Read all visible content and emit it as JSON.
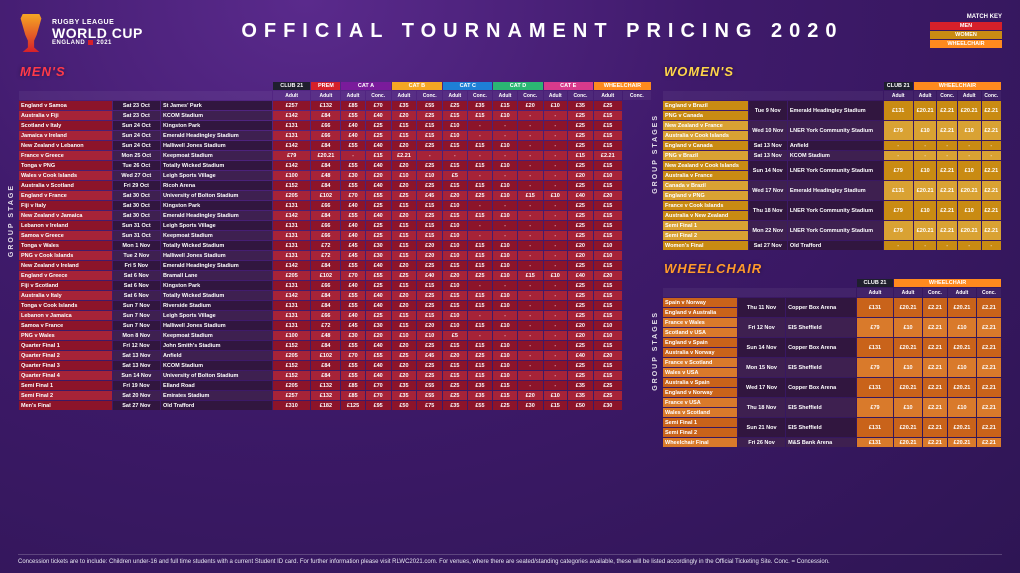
{
  "header": {
    "logo": {
      "line1": "RUGBY LEAGUE",
      "line2": "WORLD CUP",
      "line3a": "ENGLAND",
      "line3b": "2021"
    },
    "title": "OFFICIAL TOURNAMENT PRICING 2020",
    "matchKey": {
      "title": "MATCH KEY",
      "items": [
        {
          "label": "MEN",
          "bg": "#d6202a"
        },
        {
          "label": "WOMEN",
          "bg": "#c98b13"
        },
        {
          "label": "WHEELCHAIR",
          "bg": "#ff8a1e"
        }
      ]
    }
  },
  "footer": "Concession tickets are to include: Children under-16 and full time students with a current Student ID card. For further information please visit RLWC2021.com. For venues, where there are seated/standing categories available, these will be listed accordingly in the Official Ticketing Site. Conc. = Concession.",
  "mens": {
    "title": "MEN'S",
    "groupLabel": "GROUP STAGE",
    "catHeaders": [
      {
        "label": "CLUB 21",
        "cls": "c-club21",
        "cols": 1
      },
      {
        "label": "PREM",
        "cls": "c-prem",
        "cols": 1
      },
      {
        "label": "CAT A",
        "cls": "c-catA",
        "cols": 2
      },
      {
        "label": "CAT B",
        "cls": "c-catB",
        "cols": 2
      },
      {
        "label": "CAT C",
        "cls": "c-catC",
        "cols": 2
      },
      {
        "label": "CAT D",
        "cls": "c-catD",
        "cols": 2
      },
      {
        "label": "CAT E",
        "cls": "c-catE",
        "cols": 2
      },
      {
        "label": "WHEELCHAIR",
        "cls": "c-wheel",
        "cols": 2
      }
    ],
    "subHeaders": [
      "Adult",
      "Adult",
      "Adult",
      "Conc.",
      "Adult",
      "Conc.",
      "Adult",
      "Conc.",
      "Adult",
      "Conc.",
      "Adult",
      "Conc.",
      "Adult",
      "Conc."
    ],
    "rows": [
      [
        "England v Samoa",
        "Sat 23 Oct",
        "St James' Park",
        "£257",
        "£132",
        "£85",
        "£70",
        "£35",
        "£55",
        "£25",
        "£35",
        "£15",
        "£20",
        "£10",
        "£35",
        "£25"
      ],
      [
        "Australia v Fiji",
        "Sat 23 Oct",
        "KCOM Stadium",
        "£142",
        "£84",
        "£55",
        "£40",
        "£20",
        "£25",
        "£15",
        "£15",
        "£10",
        "-",
        "-",
        "£25",
        "£15"
      ],
      [
        "Scotland v Italy",
        "Sun 24 Oct",
        "Kingston Park",
        "£131",
        "£66",
        "£40",
        "£25",
        "£15",
        "£15",
        "£10",
        "-",
        "-",
        "-",
        "-",
        "£25",
        "£15"
      ],
      [
        "Jamaica v Ireland",
        "Sun 24 Oct",
        "Emerald Headingley Stadium",
        "£131",
        "£66",
        "£40",
        "£25",
        "£15",
        "£15",
        "£10",
        "-",
        "-",
        "-",
        "-",
        "£25",
        "£15"
      ],
      [
        "New Zealand v Lebanon",
        "Sun 24 Oct",
        "Halliwell Jones Stadium",
        "£142",
        "£84",
        "£55",
        "£40",
        "£20",
        "£25",
        "£15",
        "£15",
        "£10",
        "-",
        "-",
        "£25",
        "£15"
      ],
      [
        "France v Greece",
        "Mon 25 Oct",
        "Keepmoat Stadium",
        "£79",
        "£20.21",
        "-",
        "£15",
        "£2.21",
        "-",
        "-",
        "-",
        "-",
        "-",
        "-",
        "£15",
        "£2.21"
      ],
      [
        "Tonga v PNG",
        "Tue 26 Oct",
        "Totally Wicked Stadium",
        "£142",
        "£84",
        "£55",
        "£40",
        "£20",
        "£25",
        "£15",
        "£15",
        "£10",
        "-",
        "-",
        "£25",
        "£15"
      ],
      [
        "Wales v Cook Islands",
        "Wed 27 Oct",
        "Leigh Sports Village",
        "£100",
        "£48",
        "£30",
        "£20",
        "£10",
        "£10",
        "£5",
        "-",
        "-",
        "-",
        "-",
        "£20",
        "£10"
      ],
      [
        "Australia v Scotland",
        "Fri 29 Oct",
        "Ricoh Arena",
        "£152",
        "£84",
        "£55",
        "£40",
        "£20",
        "£25",
        "£15",
        "£15",
        "£10",
        "-",
        "-",
        "£25",
        "£15"
      ],
      [
        "England v France",
        "Sat 30 Oct",
        "University of Bolton Stadium",
        "£205",
        "£102",
        "£70",
        "£55",
        "£25",
        "£45",
        "£20",
        "£25",
        "£10",
        "£15",
        "£10",
        "£40",
        "£20"
      ],
      [
        "Fiji v Italy",
        "Sat 30 Oct",
        "Kingston Park",
        "£131",
        "£66",
        "£40",
        "£25",
        "£15",
        "£15",
        "£10",
        "-",
        "-",
        "-",
        "-",
        "£25",
        "£15"
      ],
      [
        "New Zealand v Jamaica",
        "Sat 30 Oct",
        "Emerald Headingley Stadium",
        "£142",
        "£84",
        "£55",
        "£40",
        "£20",
        "£25",
        "£15",
        "£15",
        "£10",
        "-",
        "-",
        "£25",
        "£15"
      ],
      [
        "Lebanon v Ireland",
        "Sun 31 Oct",
        "Leigh Sports Village",
        "£131",
        "£66",
        "£40",
        "£25",
        "£15",
        "£15",
        "£10",
        "-",
        "-",
        "-",
        "-",
        "£25",
        "£15"
      ],
      [
        "Samoa v Greece",
        "Sun 31 Oct",
        "Keepmoat Stadium",
        "£131",
        "£66",
        "£40",
        "£25",
        "£15",
        "£15",
        "£10",
        "-",
        "-",
        "-",
        "-",
        "£25",
        "£15"
      ],
      [
        "Tonga v Wales",
        "Mon 1 Nov",
        "Totally Wicked Stadium",
        "£131",
        "£72",
        "£45",
        "£30",
        "£15",
        "£20",
        "£10",
        "£15",
        "£10",
        "-",
        "-",
        "£20",
        "£10"
      ],
      [
        "PNG v Cook Islands",
        "Tue 2 Nov",
        "Halliwell Jones Stadium",
        "£131",
        "£72",
        "£45",
        "£30",
        "£15",
        "£20",
        "£10",
        "£15",
        "£10",
        "-",
        "-",
        "£20",
        "£10"
      ],
      [
        "New Zealand v Ireland",
        "Fri 5 Nov",
        "Emerald Headingley Stadium",
        "£142",
        "£84",
        "£55",
        "£40",
        "£20",
        "£25",
        "£15",
        "£15",
        "£10",
        "-",
        "-",
        "£25",
        "£15"
      ],
      [
        "England v Greece",
        "Sat 6 Nov",
        "Bramall Lane",
        "£205",
        "£102",
        "£70",
        "£55",
        "£25",
        "£40",
        "£20",
        "£25",
        "£10",
        "£15",
        "£10",
        "£40",
        "£20"
      ],
      [
        "Fiji v Scotland",
        "Sat 6 Nov",
        "Kingston Park",
        "£131",
        "£66",
        "£40",
        "£25",
        "£15",
        "£15",
        "£10",
        "-",
        "-",
        "-",
        "-",
        "£25",
        "£15"
      ],
      [
        "Australia v Italy",
        "Sat 6 Nov",
        "Totally Wicked Stadium",
        "£142",
        "£84",
        "£55",
        "£40",
        "£20",
        "£25",
        "£15",
        "£15",
        "£10",
        "-",
        "-",
        "£25",
        "£15"
      ],
      [
        "Tonga v Cook Islands",
        "Sun 7 Nov",
        "Riverside Stadium",
        "£131",
        "£84",
        "£55",
        "£40",
        "£20",
        "£25",
        "£15",
        "£15",
        "£10",
        "-",
        "-",
        "£25",
        "£15"
      ],
      [
        "Lebanon v Jamaica",
        "Sun 7 Nov",
        "Leigh Sports Village",
        "£131",
        "£66",
        "£40",
        "£25",
        "£15",
        "£15",
        "£10",
        "-",
        "-",
        "-",
        "-",
        "£25",
        "£15"
      ],
      [
        "Samoa v France",
        "Sun 7 Nov",
        "Halliwell Jones Stadium",
        "£131",
        "£72",
        "£45",
        "£30",
        "£15",
        "£20",
        "£10",
        "£15",
        "£10",
        "-",
        "-",
        "£20",
        "£10"
      ],
      [
        "PNG v Wales",
        "Mon 8 Nov",
        "Keepmoat Stadium",
        "£100",
        "£48",
        "£30",
        "£20",
        "£10",
        "£10",
        "£5",
        "-",
        "-",
        "-",
        "-",
        "£20",
        "£10"
      ],
      [
        "Quarter Final 1",
        "Fri 12 Nov",
        "John Smith's Stadium",
        "£152",
        "£84",
        "£55",
        "£40",
        "£20",
        "£25",
        "£15",
        "£15",
        "£10",
        "-",
        "-",
        "£25",
        "£15"
      ],
      [
        "Quarter Final 2",
        "Sat 13 Nov",
        "Anfield",
        "£205",
        "£102",
        "£70",
        "£55",
        "£25",
        "£45",
        "£20",
        "£25",
        "£10",
        "-",
        "-",
        "£40",
        "£20"
      ],
      [
        "Quarter Final 3",
        "Sat 13 Nov",
        "KCOM Stadium",
        "£152",
        "£84",
        "£55",
        "£40",
        "£20",
        "£25",
        "£15",
        "£15",
        "£10",
        "-",
        "-",
        "£25",
        "£15"
      ],
      [
        "Quarter Final 4",
        "Sun 14 Nov",
        "University of Bolton Stadium",
        "£152",
        "£84",
        "£55",
        "£40",
        "£20",
        "£25",
        "£15",
        "£15",
        "£10",
        "-",
        "-",
        "£25",
        "£15"
      ],
      [
        "Semi Final 1",
        "Fri 19 Nov",
        "Elland Road",
        "£205",
        "£132",
        "£85",
        "£70",
        "£35",
        "£55",
        "£25",
        "£35",
        "£15",
        "-",
        "-",
        "£35",
        "£25"
      ],
      [
        "Semi Final 2",
        "Sat 20 Nov",
        "Emirates Stadium",
        "£257",
        "£132",
        "£85",
        "£70",
        "£35",
        "£55",
        "£25",
        "£35",
        "£15",
        "£20",
        "£10",
        "£35",
        "£25"
      ],
      [
        "Men's Final",
        "Sat 27 Nov",
        "Old Trafford",
        "£310",
        "£182",
        "£125",
        "£95",
        "£50",
        "£75",
        "£35",
        "£55",
        "£25",
        "£30",
        "£15",
        "£50",
        "£30"
      ]
    ]
  },
  "womens": {
    "title": "WOMEN'S",
    "groupLabel": "GROUP STAGES",
    "catHeaders": [
      {
        "label": "CLUB 21",
        "cls": "c-club21",
        "cols": 1
      },
      {
        "label": "WHEELCHAIR",
        "cls": "c-wheel",
        "cols": 4
      }
    ],
    "subHeaders": [
      "Adult",
      "Adult",
      "Conc.",
      "Adult",
      "Conc."
    ],
    "rows": [
      {
        "pair": [
          "England v Brazil",
          "PNG v Canada"
        ],
        "date": "Tue 9 Nov",
        "venue": "Emerald Headingley Stadium",
        "cells": [
          "£131",
          "£20.21",
          "£2.21",
          "£20.21",
          "£2.21"
        ]
      },
      {
        "pair": [
          "New Zealand v France",
          "Australia v Cook Islands"
        ],
        "date": "Wed 10 Nov",
        "venue": "LNER York Community Stadium",
        "cells": [
          "£79",
          "£10",
          "£2.21",
          "£10",
          "£2.21"
        ]
      },
      {
        "single": "England v Canada",
        "date": "Sat 13 Nov",
        "venue": "Anfield",
        "cells": [
          "-",
          "-",
          "-",
          "-",
          "-"
        ]
      },
      {
        "single": "PNG v Brazil",
        "date": "Sat 13 Nov",
        "venue": "KCOM Stadium",
        "cells": [
          "-",
          "-",
          "-",
          "-",
          "-"
        ]
      },
      {
        "pair": [
          "New Zealand v Cook Islands",
          "Australia v France"
        ],
        "date": "Sun 14 Nov",
        "venue": "LNER York Community Stadium",
        "cells": [
          "£79",
          "£10",
          "£2.21",
          "£10",
          "£2.21"
        ]
      },
      {
        "pair": [
          "Canada v Brazil",
          "England v PNG"
        ],
        "date": "Wed 17 Nov",
        "venue": "Emerald Headingley Stadium",
        "cells": [
          "£131",
          "£20.21",
          "£2.21",
          "£20.21",
          "£2.21"
        ]
      },
      {
        "pair": [
          "France v Cook Islands",
          "Australia v New Zealand"
        ],
        "date": "Thu 18 Nov",
        "venue": "LNER York Community Stadium",
        "cells": [
          "£79",
          "£10",
          "£2.21",
          "£10",
          "£2.21"
        ]
      },
      {
        "pair": [
          "Semi Final 1",
          "Semi Final 2"
        ],
        "date": "Mon 22 Nov",
        "venue": "LNER York Community Stadium",
        "cells": [
          "£79",
          "£20.21",
          "£2.21",
          "£20.21",
          "£2.21"
        ]
      },
      {
        "single": "Women's Final",
        "date": "Sat 27 Nov",
        "venue": "Old Trafford",
        "cells": [
          "-",
          "-",
          "-",
          "-",
          "-"
        ]
      }
    ]
  },
  "wheelchair": {
    "title": "WHEELCHAIR",
    "groupLabel": "GROUP STAGES",
    "catHeaders": [
      {
        "label": "CLUB 21",
        "cls": "c-club21",
        "cols": 1
      },
      {
        "label": "WHEELCHAIR",
        "cls": "c-wheel",
        "cols": 4
      }
    ],
    "subHeaders": [
      "Adult",
      "Adult",
      "Conc.",
      "Adult",
      "Conc."
    ],
    "rows": [
      {
        "pair": [
          "Spain v Norway",
          "England v Australia"
        ],
        "date": "Thu 11 Nov",
        "venue": "Copper Box Arena",
        "cells": [
          "£131",
          "£20.21",
          "£2.21",
          "£20.21",
          "£2.21"
        ]
      },
      {
        "pair": [
          "France v Wales",
          "Scotland v USA"
        ],
        "date": "Fri 12 Nov",
        "venue": "EIS Sheffield",
        "cells": [
          "£79",
          "£10",
          "£2.21",
          "£10",
          "£2.21"
        ]
      },
      {
        "pair": [
          "England v Spain",
          "Australia v Norway"
        ],
        "date": "Sun 14 Nov",
        "venue": "Copper Box Arena",
        "cells": [
          "£131",
          "£20.21",
          "£2.21",
          "£20.21",
          "£2.21"
        ]
      },
      {
        "pair": [
          "France v Scotland",
          "Wales v USA"
        ],
        "date": "Mon 15 Nov",
        "venue": "EIS Sheffield",
        "cells": [
          "£79",
          "£10",
          "£2.21",
          "£10",
          "£2.21"
        ]
      },
      {
        "pair": [
          "Australia v Spain",
          "England v Norway"
        ],
        "date": "Wed 17 Nov",
        "venue": "Copper Box Arena",
        "cells": [
          "£131",
          "£20.21",
          "£2.21",
          "£20.21",
          "£2.21"
        ]
      },
      {
        "pair": [
          "France v USA",
          "Wales v Scotland"
        ],
        "date": "Thu 18 Nov",
        "venue": "EIS Sheffield",
        "cells": [
          "£79",
          "£10",
          "£2.21",
          "£10",
          "£2.21"
        ]
      },
      {
        "pair": [
          "Semi Final 1",
          "Semi Final 2"
        ],
        "date": "Sun 21 Nov",
        "venue": "EIS Sheffield",
        "cells": [
          "£131",
          "£20.21",
          "£2.21",
          "£20.21",
          "£2.21"
        ]
      },
      {
        "single": "Wheelchair Final",
        "date": "Fri 26 Nov",
        "venue": "M&S Bank Arena",
        "cells": [
          "£131",
          "£20.21",
          "£2.21",
          "£20.21",
          "£2.21"
        ]
      }
    ]
  }
}
